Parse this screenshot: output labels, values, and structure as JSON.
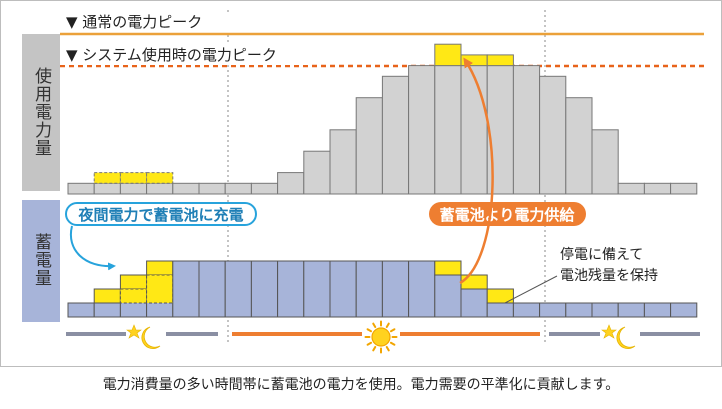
{
  "labels": {
    "normal_peak": "▼ 通常の電力ピーク",
    "system_peak": "▼ システム使用時の電力ピーク",
    "usage_axis": "使用電力量",
    "storage_axis": "蓄電量",
    "night_charge": "夜間電力で蓄電池に充電",
    "battery_supply": "蓄電池より電力供給",
    "outage_line1": "停電に備えて",
    "outage_line2": "電池残量を保持",
    "caption": "電力消費量の多い時間帯に蓄電池の電力を使用。電力需要の平準化に貢献します。"
  },
  "colors": {
    "usage_bar": "#d2d2d2",
    "storage_bar": "#a7b4d9",
    "charge_highlight": "#ffe815",
    "normal_peak_line": "#eba13a",
    "system_peak_line": "#e8631a",
    "night_callout": "#27a3dc",
    "supply_callout": "#ee7e31",
    "axis_panel": "#c4c4c4",
    "storage_panel": "#a7b4d9",
    "night_timeline": "#8a8fa3",
    "day_timeline": "#ee7e31"
  },
  "chart_data": {
    "type": "bar",
    "hours": 24,
    "usage": {
      "base": [
        1,
        1,
        1,
        1,
        1,
        1,
        1,
        1,
        2,
        4,
        6,
        9,
        11,
        12,
        12,
        12,
        12,
        12,
        11,
        9,
        6,
        1,
        1,
        1
      ],
      "added_charge": [
        0,
        1,
        1,
        1,
        0,
        0,
        0,
        0,
        0,
        0,
        0,
        0,
        0,
        0,
        0,
        0,
        0,
        0,
        0,
        0,
        0,
        0,
        0,
        0
      ],
      "peak_shaved": [
        0,
        0,
        0,
        0,
        0,
        0,
        0,
        0,
        0,
        0,
        0,
        0,
        0,
        0,
        2,
        1,
        1,
        0,
        0,
        0,
        0,
        0,
        0,
        0
      ],
      "normal_peak_level": 14,
      "system_peak_level": 12
    },
    "storage": {
      "level": [
        1,
        1,
        2,
        3,
        4,
        4,
        4,
        4,
        4,
        4,
        4,
        4,
        4,
        4,
        3,
        2,
        1,
        1,
        1,
        1,
        1,
        1,
        1,
        1
      ],
      "charging_increment": [
        0,
        1,
        1,
        1,
        0,
        0,
        0,
        0,
        0,
        0,
        0,
        0,
        0,
        0,
        0,
        0,
        0,
        0,
        0,
        0,
        0,
        0,
        0,
        0
      ],
      "discharged": [
        0,
        0,
        0,
        0,
        0,
        0,
        0,
        0,
        0,
        0,
        0,
        0,
        0,
        0,
        1,
        1,
        1,
        0,
        0,
        0,
        0,
        0,
        0,
        0
      ],
      "reserve_level": 1
    },
    "periods": [
      {
        "name": "night",
        "icon": "moon-star-icon",
        "from": 0,
        "to": 6
      },
      {
        "name": "day",
        "icon": "sun-icon",
        "from": 6,
        "to": 18
      },
      {
        "name": "night",
        "icon": "moon-star-icon",
        "from": 18,
        "to": 24
      }
    ]
  }
}
